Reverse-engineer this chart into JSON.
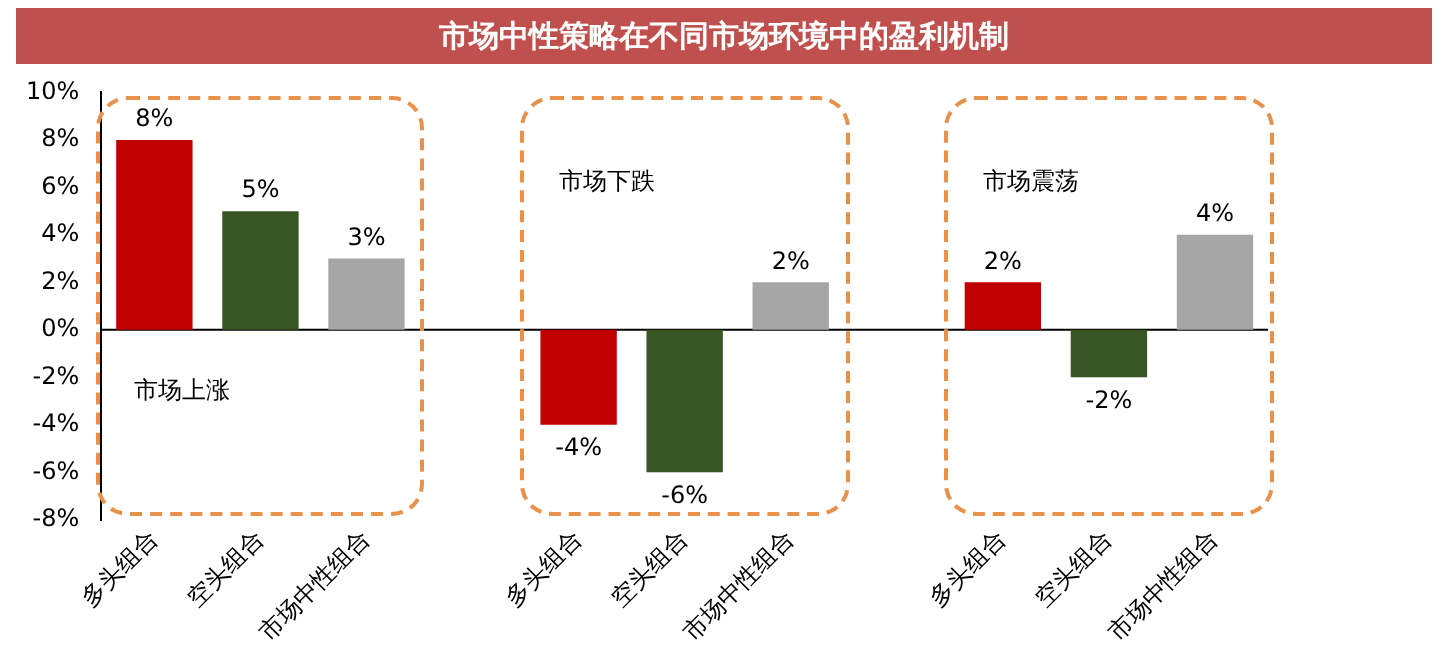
{
  "chart_data": {
    "type": "bar",
    "title": "市场中性策略在不同市场环境中的盈利机制",
    "categories": [
      "多头组合",
      "空头组合",
      "市场中性组合",
      null,
      "多头组合",
      "空头组合",
      "市场中性组合",
      null,
      "多头组合",
      "空头组合",
      "市场中性组合"
    ],
    "values": [
      8,
      5,
      3,
      null,
      -4,
      -6,
      2,
      null,
      2,
      -2,
      4
    ],
    "value_labels": [
      "8%",
      "5%",
      "3%",
      null,
      "-4%",
      "-6%",
      "2%",
      null,
      "2%",
      "-2%",
      "4%"
    ],
    "colors": [
      "#c00000",
      "#375623",
      "#a6a6a6",
      null,
      "#c00000",
      "#375623",
      "#a6a6a6",
      null,
      "#c00000",
      "#375623",
      "#a6a6a6"
    ],
    "ylim": [
      -8,
      10
    ],
    "yticks": [
      {
        "value": -8,
        "label": "-8%"
      },
      {
        "value": -6,
        "label": "-6%"
      },
      {
        "value": -4,
        "label": "-4%"
      },
      {
        "value": -2,
        "label": "-2%"
      },
      {
        "value": 0,
        "label": "0%"
      },
      {
        "value": 2,
        "label": "2%"
      },
      {
        "value": 4,
        "label": "4%"
      },
      {
        "value": 6,
        "label": "6%"
      },
      {
        "value": 8,
        "label": "8%"
      },
      {
        "value": 10,
        "label": "10%"
      }
    ],
    "annotations": [
      "市场上涨",
      "市场下跌",
      "市场震荡"
    ],
    "ref_lines": [
      {
        "axis": "y",
        "value": 0,
        "color": "#000000"
      }
    ],
    "grid": false,
    "legend": false
  }
}
